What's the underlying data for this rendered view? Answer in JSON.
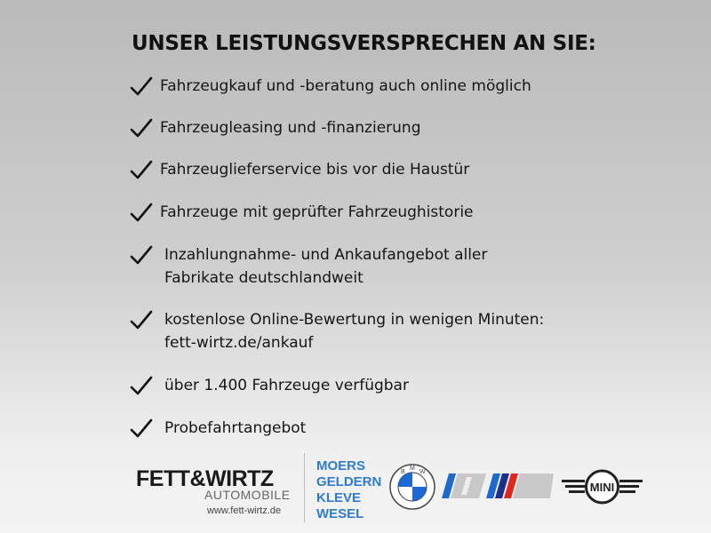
{
  "title": "UNSER LEISTUNGSVERSPRECHEN AN SIE:",
  "items": [
    {
      "lines": [
        "Fahrzeugkauf und -beratung auch online möglich"
      ]
    },
    {
      "lines": [
        "Fahrzeugleasing und -finanzierung"
      ]
    },
    {
      "lines": [
        "Fahrzeuglieferservice bis vor die Haustür"
      ]
    },
    {
      "lines": [
        "Fahrzeuge mit geprüfter Fahrzeughistorie"
      ]
    },
    {
      "lines": [
        "Inzahlungnahme- und Ankaufangebot aller",
        "Fabrikate deutschlandweit"
      ]
    },
    {
      "lines": [
        "kostenlose Online-Bewertung in wenigen Minuten:",
        "fett-wirtz.de/ankauf"
      ]
    },
    {
      "lines": [
        "über 1.400 Fahrzeuge verfügbar"
      ]
    },
    {
      "lines": [
        "Probefahrtangebot"
      ]
    }
  ],
  "icons": {
    "bullet": "checkmark-icon"
  },
  "footer": {
    "brand": "FETT&WIRTZ",
    "brand_sub": "AUTOMOBILE",
    "url": "www.fett-wirtz.de",
    "cities": [
      "MOERS",
      "GELDERN",
      "KLEVE",
      "WESEL"
    ],
    "logos": {
      "bmw": "BMW",
      "mini": "MINI"
    },
    "colors": {
      "cities": "#2d7bd6",
      "bmw_blue": "#1c69d4",
      "m_red": "#e22718",
      "m_dark_blue": "#1b2f8f"
    }
  }
}
